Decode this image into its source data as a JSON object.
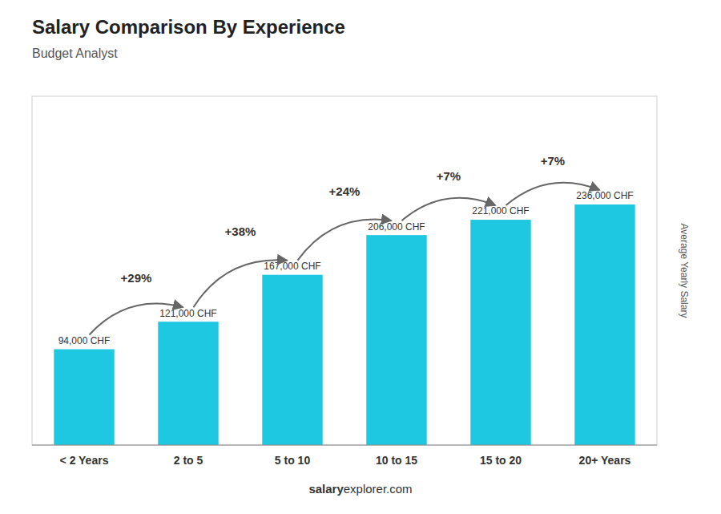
{
  "chart_data": {
    "type": "bar",
    "title": "Salary Comparison By Experience",
    "subtitle": "Budget Analyst",
    "categories": [
      "< 2 Years",
      "2 to 5",
      "5 to 10",
      "10 to 15",
      "15 to 20",
      "20+ Years"
    ],
    "values": [
      94000,
      121000,
      167000,
      206000,
      221000,
      236000
    ],
    "value_labels": [
      "94,000 CHF",
      "121,000 CHF",
      "167,000 CHF",
      "206,000 CHF",
      "221,000 CHF",
      "236,000 CHF"
    ],
    "data_labels": true,
    "color": "#1ec8e0",
    "ylabel": "Average Yearly Salary",
    "ylim": [
      0,
      342200
    ],
    "tick_labels": "x",
    "grid": false,
    "annotations": [
      "+29%",
      "+38%",
      "+24%",
      "+7%",
      "+7%"
    ],
    "footer": [
      "salary",
      "explorer.com"
    ]
  }
}
